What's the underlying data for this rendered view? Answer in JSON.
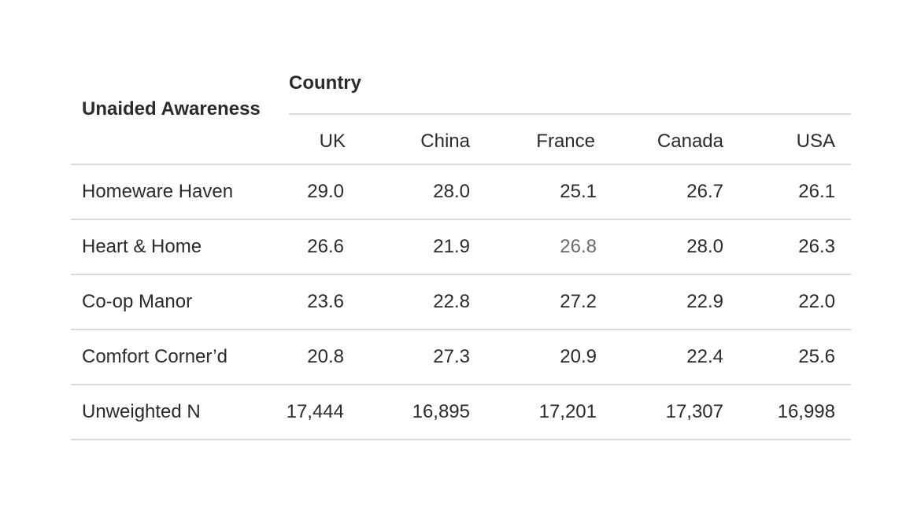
{
  "chart_data": {
    "type": "table",
    "stub_header": "Unaided Awareness",
    "group_header": "Country",
    "columns": [
      "UK",
      "China",
      "France",
      "Canada",
      "USA"
    ],
    "rows": [
      {
        "label": "Homeware Haven",
        "values": [
          "29.0",
          "28.0",
          "25.1",
          "26.7",
          "26.1"
        ]
      },
      {
        "label": "Heart & Home",
        "values": [
          "26.6",
          "21.9",
          "26.8",
          "28.0",
          "26.3"
        ]
      },
      {
        "label": "Co-op Manor",
        "values": [
          "23.6",
          "22.8",
          "27.2",
          "22.9",
          "22.0"
        ]
      },
      {
        "label": "Comfort Corner’d",
        "values": [
          "20.8",
          "27.3",
          "20.9",
          "22.4",
          "25.6"
        ]
      },
      {
        "label": "Unweighted N",
        "values": [
          "17,444",
          "16,895",
          "17,201",
          "17,307",
          "16,998"
        ]
      }
    ],
    "muted_cells": [
      [
        1,
        2
      ]
    ],
    "colors": {
      "text": "#2b2b2b",
      "muted_text": "#6b6b6b",
      "rule": "#d9d9d9"
    }
  }
}
